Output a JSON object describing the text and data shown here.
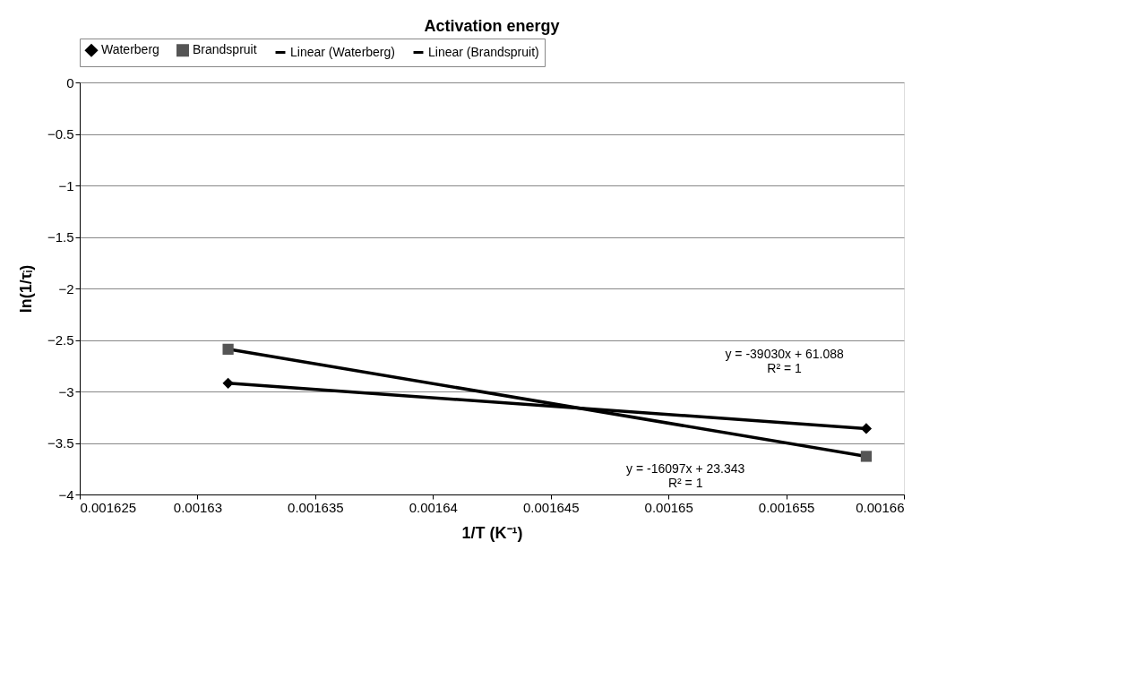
{
  "chart_data": {
    "type": "scatter",
    "title": "Activation energy",
    "xlabel": "1/T (K⁻¹)",
    "ylabel": "ln(1/τᵢ)",
    "x": [
      0.0016313,
      0.0016584
    ],
    "series": [
      {
        "name": "Waterberg",
        "marker": "diamond",
        "color": "#000000",
        "values": [
          -2.92,
          -3.36
        ]
      },
      {
        "name": "Brandspruit",
        "marker": "square",
        "color": "#555555",
        "values": [
          -2.59,
          -3.63
        ]
      },
      {
        "name": "Linear (Waterberg)",
        "type": "line",
        "color": "#000000",
        "values": [
          -2.92,
          -3.36
        ]
      },
      {
        "name": "Linear (Brandspruit)",
        "type": "line",
        "color": "#000000",
        "values": [
          -2.59,
          -3.63
        ]
      }
    ],
    "annotations": [
      "y = -39030x + 61.088\nR² = 1",
      "y = -16097x + 23.343\nR² = 1"
    ],
    "xlim": [
      0.001625,
      0.00166
    ],
    "xticks": [
      0.001625,
      0.00163,
      0.001635,
      0.00164,
      0.001645,
      0.00165,
      0.001655,
      0.00166
    ],
    "ylim": [
      -4,
      0
    ],
    "yticks": [
      0,
      -0.5,
      -1,
      -1.5,
      -2,
      -2.5,
      -3,
      -3.5,
      -4
    ],
    "grid": "y",
    "legend": "top"
  }
}
